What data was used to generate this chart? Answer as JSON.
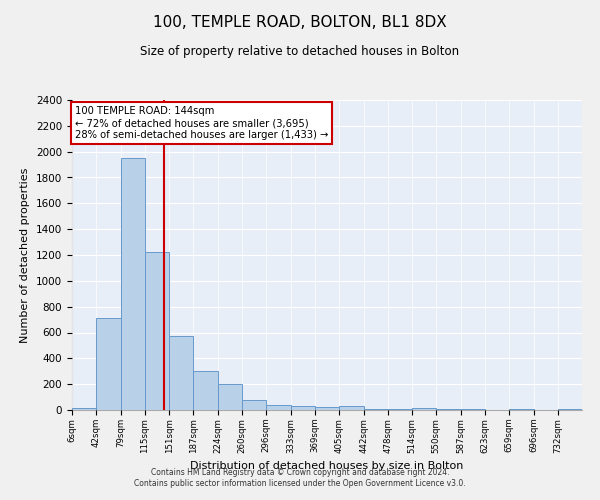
{
  "title": "100, TEMPLE ROAD, BOLTON, BL1 8DX",
  "subtitle": "Size of property relative to detached houses in Bolton",
  "xlabel": "Distribution of detached houses by size in Bolton",
  "ylabel": "Number of detached properties",
  "bar_color": "#b8d0e8",
  "bar_edge_color": "#6699cc",
  "background_color": "#e8eef8",
  "grid_color": "#ffffff",
  "annotation_box_color": "#cc0000",
  "property_line_color": "#cc0000",
  "property_size": 144,
  "annotation_text_line1": "100 TEMPLE ROAD: 144sqm",
  "annotation_text_line2": "← 72% of detached houses are smaller (3,695)",
  "annotation_text_line3": "28% of semi-detached houses are larger (1,433) →",
  "categories": [
    "6sqm",
    "42sqm",
    "79sqm",
    "115sqm",
    "151sqm",
    "187sqm",
    "224sqm",
    "260sqm",
    "296sqm",
    "333sqm",
    "369sqm",
    "405sqm",
    "442sqm",
    "478sqm",
    "514sqm",
    "550sqm",
    "587sqm",
    "623sqm",
    "659sqm",
    "696sqm",
    "732sqm"
  ],
  "bar_lefts": [
    6,
    42,
    79,
    115,
    151,
    187,
    224,
    260,
    296,
    333,
    369,
    405,
    442,
    478,
    514,
    550,
    587,
    623,
    659,
    696,
    732
  ],
  "bar_rights": [
    42,
    79,
    115,
    151,
    187,
    224,
    260,
    296,
    333,
    369,
    405,
    442,
    478,
    514,
    550,
    587,
    623,
    659,
    696,
    732,
    768
  ],
  "values": [
    15,
    710,
    1950,
    1225,
    575,
    305,
    200,
    75,
    40,
    30,
    25,
    30,
    10,
    5,
    15,
    5,
    5,
    2,
    5,
    2,
    5
  ],
  "ylim": [
    0,
    2400
  ],
  "yticks": [
    0,
    200,
    400,
    600,
    800,
    1000,
    1200,
    1400,
    1600,
    1800,
    2000,
    2200,
    2400
  ],
  "xlim_left": 6,
  "xlim_right": 768,
  "footer_line1": "Contains HM Land Registry data © Crown copyright and database right 2024.",
  "footer_line2": "Contains public sector information licensed under the Open Government Licence v3.0."
}
